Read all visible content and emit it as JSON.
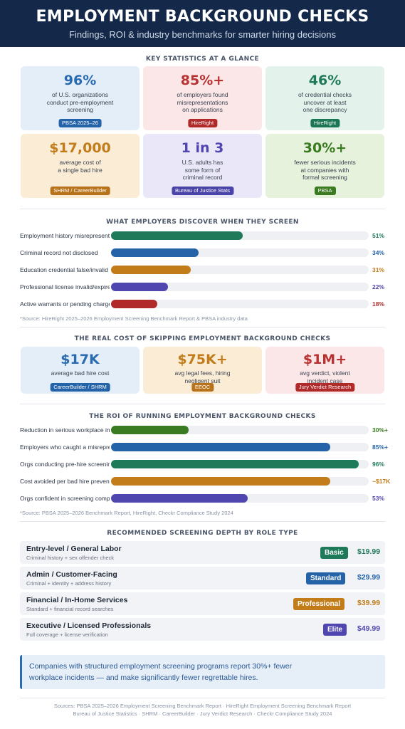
{
  "header": {
    "title": "EMPLOYMENT BACKGROUND CHECKS",
    "subtitle": "Findings, ROI & industry benchmarks for smarter hiring decisions"
  },
  "stats": {
    "title": "KEY STATISTICS AT A GLANCE",
    "cards": [
      {
        "value": "96%",
        "desc": [
          "of U.S. organizations",
          "conduct pre-employment",
          "screening"
        ],
        "source": "PBSA 2025–26",
        "color": "#2b6cb0",
        "bg": "#e4eef9",
        "badge_color": "#2563a8"
      },
      {
        "value": "85%+",
        "desc": [
          "of employers found",
          "misrepresentations",
          "on applications"
        ],
        "source": "HireRight",
        "color": "#b83232",
        "bg": "#fbe7e7",
        "badge_color": "#b02a2a"
      },
      {
        "value": "46%",
        "desc": [
          "of credential checks",
          "uncover at least",
          "one discrepancy"
        ],
        "source": "HireRight",
        "color": "#1f7a5a",
        "bg": "#e3f3ec",
        "badge_color": "#1a7654"
      },
      {
        "value": "$17,000",
        "desc": [
          "average cost of",
          "a single bad hire"
        ],
        "source": "SHRM / CareerBuilder",
        "color": "#c27c1a",
        "bg": "#fbecd6",
        "badge_color": "#b8731a"
      },
      {
        "value": "1 in 3",
        "desc": [
          "U.S. adults has",
          "some form of",
          "criminal record"
        ],
        "source": "Bureau of Justice Stats",
        "color": "#5046b0",
        "bg": "#eae8f8",
        "badge_color": "#4a43a8"
      },
      {
        "value": "30%+",
        "desc": [
          "fewer serious incidents",
          "at companies with",
          "formal screening"
        ],
        "source": "PBSA",
        "color": "#3a7a20",
        "bg": "#e6f2dc",
        "badge_color": "#3a7a20"
      }
    ]
  },
  "discover": {
    "title": "WHAT EMPLOYERS DISCOVER WHEN THEY SCREEN",
    "source": "*Source: HireRight 2025–2026 Employment Screening Benchmark Report & PBSA industry data",
    "rows": [
      {
        "label": "Employment history misrepresentation",
        "value": 51,
        "pct": "51%",
        "color": "#1f7a5a"
      },
      {
        "label": "Criminal record not disclosed",
        "value": 34,
        "pct": "34%",
        "color": "#2563a8"
      },
      {
        "label": "Education credential false/invalid",
        "value": 31,
        "pct": "31%",
        "color": "#c27c1a"
      },
      {
        "label": "Professional license invalid/expired",
        "value": 22,
        "pct": "22%",
        "color": "#5046b0"
      },
      {
        "label": "Active warrants or pending charges",
        "value": 18,
        "pct": "18%",
        "color": "#b02a2a"
      }
    ]
  },
  "cost": {
    "title": "THE REAL COST OF SKIPPING EMPLOYMENT BACKGROUND CHECKS",
    "cards": [
      {
        "value": "$17K",
        "desc": [
          "average bad hire cost"
        ],
        "source": "CareerBuilder / SHRM",
        "color": "#2b6cb0",
        "bg": "#e4eef9",
        "badge_color": "#2563a8"
      },
      {
        "value": "$75K+",
        "desc": [
          "avg legal fees, hiring",
          "negligent suit"
        ],
        "source": "EEOC",
        "color": "#c27c1a",
        "bg": "#fbecd6",
        "badge_color": "#b8731a"
      },
      {
        "value": "$1M+",
        "desc": [
          "avg verdict, violent",
          "incident case"
        ],
        "source": "Jury Verdict Research",
        "color": "#b83232",
        "bg": "#fbe7e7",
        "badge_color": "#b02a2a"
      }
    ]
  },
  "roi": {
    "title": "THE ROI OF RUNNING EMPLOYMENT BACKGROUND CHECKS",
    "source": "*Source: PBSA 2025–2026 Benchmark Report, HireRight, Checkr Compliance Study 2024",
    "rows": [
      {
        "label": "Reduction in serious workplace incidents",
        "value": 30,
        "pct": "30%+",
        "color": "#3a7a20"
      },
      {
        "label": "Employers who caught a misrepresentation",
        "value": 85,
        "pct": "85%+",
        "color": "#2563a8"
      },
      {
        "label": "Orgs conducting pre-hire screening",
        "value": 96,
        "pct": "96%",
        "color": "#1f7a5a"
      },
      {
        "label": "Cost avoided per bad hire prevented",
        "value": 85,
        "pct": "~$17K",
        "color": "#c27c1a"
      },
      {
        "label": "Orgs confident in screening compliance",
        "value": 53,
        "pct": "53%",
        "color": "#5046b0"
      }
    ]
  },
  "tiers": {
    "title": "RECOMMENDED SCREENING DEPTH BY ROLE TYPE",
    "items": [
      {
        "name": "Entry-level / General Labor",
        "desc": "Criminal history + sex offender check",
        "badge": "Basic",
        "price": "$19.99",
        "color": "#1f7a5a"
      },
      {
        "name": "Admin / Customer-Facing",
        "desc": "Criminal + identity + address history",
        "badge": "Standard",
        "price": "$29.99",
        "color": "#2563a8"
      },
      {
        "name": "Financial / In-Home Services",
        "desc": "Standard + financial record searches",
        "badge": "Professional",
        "price": "$39.99",
        "color": "#c27c1a"
      },
      {
        "name": "Executive / Licensed Professionals",
        "desc": "Full coverage + license verification",
        "badge": "Elite",
        "price": "$49.99",
        "color": "#5046b0"
      }
    ]
  },
  "callout": {
    "line1": "Companies with structured employment screening programs report 30%+ fewer",
    "line2": "workplace incidents — and make significantly fewer regrettable hires."
  },
  "footer": {
    "line1": "Sources: PBSA 2025–2026 Employment Screening Benchmark Report  ·  HireRight Employment Screening Benchmark Report",
    "line2": "Bureau of Justice Statistics  ·  SHRM  ·  CareerBuilder  ·  Jury Verdict Research  ·  Checkr Compliance Study 2024"
  }
}
